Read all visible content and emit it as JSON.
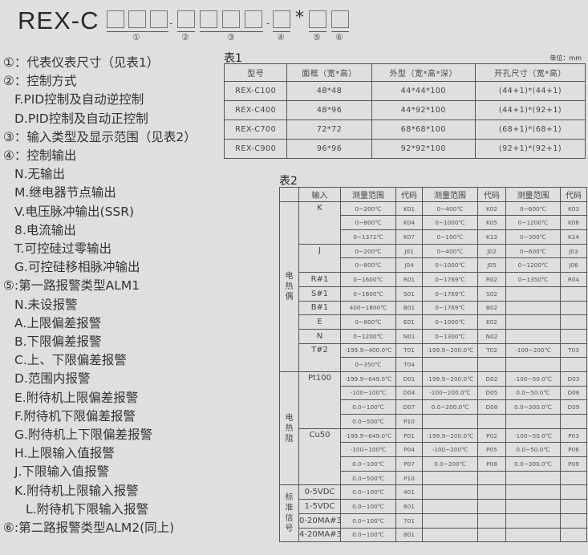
{
  "header": {
    "model_prefix": "REX-C",
    "separator_star": "*",
    "position_numbers": [
      "①",
      "②",
      "③",
      "④",
      "⑤",
      "⑥"
    ]
  },
  "legend": [
    {
      "text": "①：代表仪表尺寸（见表1）",
      "level": 0
    },
    {
      "text": "②：控制方式",
      "level": 0
    },
    {
      "text": "F.PID控制及自动逆控制",
      "level": 1
    },
    {
      "text": "D.PID控制及自动正控制",
      "level": 1
    },
    {
      "text": "③：输入类型及显示范围（见表2）",
      "level": 0
    },
    {
      "text": "④：控制输出",
      "level": 0
    },
    {
      "text": "N.无输出",
      "level": 1
    },
    {
      "text": "M.继电器节点输出",
      "level": 1
    },
    {
      "text": "V.电压脉冲输出(SSR)",
      "level": 1
    },
    {
      "text": "8.电流输出",
      "level": 1
    },
    {
      "text": "T.可控硅过零输出",
      "level": 1
    },
    {
      "text": "G.可控硅移相脉冲输出",
      "level": 1
    },
    {
      "text": "⑤:第一路报警类型ALM1",
      "level": 0
    },
    {
      "text": "N.未设报警",
      "level": 1
    },
    {
      "text": "A.上限偏差报警",
      "level": 1
    },
    {
      "text": "B.下限偏差报警",
      "level": 1
    },
    {
      "text": "C.上、下限偏差报警",
      "level": 1
    },
    {
      "text": "D.范围内报警",
      "level": 1
    },
    {
      "text": "E.附待机上限偏差报警",
      "level": 1
    },
    {
      "text": "F.附待机下限偏差报警",
      "level": 1
    },
    {
      "text": "G.附待机上下限偏差报警",
      "level": 1
    },
    {
      "text": "H.上限输入值报警",
      "level": 1
    },
    {
      "text": "J.下限输入值报警",
      "level": 1
    },
    {
      "text": "K.附待机上限输入报警",
      "level": 1
    },
    {
      "text": "L.附待机下限输入报警",
      "level": 2
    },
    {
      "text": "⑥:第二路报警类型ALM2(同上)",
      "level": 0
    }
  ],
  "table1": {
    "title": "表1",
    "unit": "单位：mm",
    "headers": [
      "型号",
      "面框（宽*高）",
      "外型（宽*高*深）",
      "开孔尺寸（宽*高）"
    ],
    "rows": [
      [
        "REX-C100",
        "48*48",
        "44*44*100",
        "(44+1)*(44+1)"
      ],
      [
        "REX-C400",
        "48*96",
        "44*92*100",
        "(44+1)*(92+1)"
      ],
      [
        "REX-C700",
        "72*72",
        "68*68*100",
        "(68+1)*(68+1)"
      ],
      [
        "REX-C900",
        "96*96",
        "92*92*100",
        "(92+1)*(92+1)"
      ]
    ]
  },
  "table2": {
    "title": "表2",
    "headers": [
      "输入",
      "测量范围",
      "代码",
      "测量范围",
      "代码",
      "测量范围",
      "代码"
    ],
    "groups": [
      {
        "label": "电热偶",
        "inputs": [
          {
            "label": "K",
            "rows": [
              [
                "0~200℃",
                "K01",
                "0~400℃",
                "K02",
                "0~600℃",
                "K03"
              ],
              [
                "0~800℃",
                "K04",
                "0~1000℃",
                "K05",
                "0~1200℃",
                "K06"
              ],
              [
                "0~1372℃",
                "K07",
                "0~100℃",
                "K13",
                "0~300℃",
                "K14"
              ]
            ]
          },
          {
            "label": "J",
            "rows": [
              [
                "0~200℃",
                "J01",
                "0~400℃",
                "J02",
                "0~600℃",
                "J03"
              ],
              [
                "0~800℃",
                "J04",
                "0~1000℃",
                "J05",
                "0~1200℃",
                "J06"
              ]
            ]
          },
          {
            "label": "R#1",
            "rows": [
              [
                "0~1600℃",
                "R01",
                "0~1769℃",
                "R02",
                "0~1350℃",
                "R04"
              ]
            ]
          },
          {
            "label": "S#1",
            "rows": [
              [
                "0~1600℃",
                "S01",
                "0~1769℃",
                "S02",
                "",
                ""
              ]
            ]
          },
          {
            "label": "B#1",
            "rows": [
              [
                "400~1800℃",
                "B01",
                "0~1769℃",
                "B02",
                "",
                ""
              ]
            ]
          },
          {
            "label": "E",
            "rows": [
              [
                "0~800℃",
                "E01",
                "0~1000℃",
                "E02",
                "",
                ""
              ]
            ]
          },
          {
            "label": "N",
            "rows": [
              [
                "0~1200℃",
                "N01",
                "0~1300℃",
                "N02",
                "",
                ""
              ]
            ]
          },
          {
            "label": "T#2",
            "rows": [
              [
                "-199.9~400.0℃",
                "T01",
                "-199.9~200.0℃",
                "T02",
                "-100~200℃",
                "T03"
              ],
              [
                "0~350℃",
                "T04",
                "",
                "",
                "",
                ""
              ]
            ]
          }
        ]
      },
      {
        "label": "电热阻",
        "inputs": [
          {
            "label": "Pt100",
            "rows": [
              [
                "-199.9~649.0℃",
                "D01",
                "-199.9~200.0℃",
                "D02",
                "-100~50.0℃",
                "D03"
              ],
              [
                "-100~100℃",
                "D04",
                "-100~200.0℃",
                "D05",
                "0.0~50.0℃",
                "D06"
              ],
              [
                "0.0~100℃",
                "D07",
                "0.0~200.0℃",
                "D08",
                "0.0~300.0℃",
                "D09"
              ],
              [
                "0.0~500℃",
                "P10",
                "",
                "",
                "",
                ""
              ]
            ]
          },
          {
            "label": "Cu50",
            "rows": [
              [
                "-199.9~649.0℃",
                "P01",
                "-199.9~200.0℃",
                "P02",
                "-100~50.0℃",
                "P03"
              ],
              [
                "-100~100℃",
                "P04",
                "-100~200℃",
                "P05",
                "0.0~50.0℃",
                "P06"
              ],
              [
                "0.0~100℃",
                "P07",
                "0.0~200℃",
                "P08",
                "0.0~300.0℃",
                "P09"
              ],
              [
                "0.0~500℃",
                "P10",
                "",
                "",
                "",
                ""
              ]
            ]
          }
        ]
      },
      {
        "label": "标准信号",
        "inputs": [
          {
            "label": "0-5VDC",
            "rows": [
              [
                "0.0~100℃",
                "401",
                "",
                "",
                "",
                ""
              ]
            ]
          },
          {
            "label": "1-5VDC",
            "rows": [
              [
                "0.0~100℃",
                "601",
                "",
                "",
                "",
                ""
              ]
            ]
          },
          {
            "label": "0-20MA#3",
            "rows": [
              [
                "0.0~100℃",
                "701",
                "",
                "",
                "",
                ""
              ]
            ]
          },
          {
            "label": "4-20MA#3",
            "rows": [
              [
                "0.0~100℃",
                "801",
                "",
                "",
                "",
                ""
              ]
            ]
          }
        ]
      }
    ]
  }
}
